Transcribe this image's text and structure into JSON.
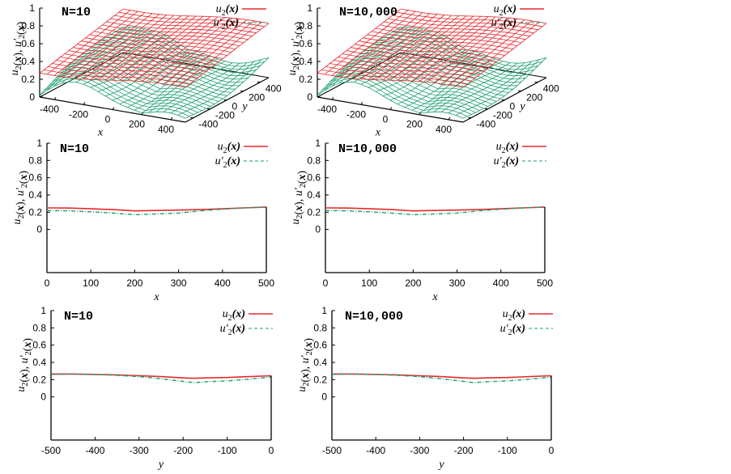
{
  "chart_data": [
    {
      "id": "p3d-n10",
      "type": "surface",
      "annotation": "N=10",
      "xlabel": "x",
      "ylabel": "y",
      "zlabel": "u2(x), u'2(x)",
      "xticks": [
        "-400",
        "-200",
        "0",
        "200",
        "400"
      ],
      "yticks": [
        "-400",
        "-200",
        "0",
        "200",
        "400"
      ],
      "zticks": [
        "0",
        "0.2",
        "0.4",
        "0.6",
        "0.8",
        "1"
      ],
      "xlim": [
        -500,
        500
      ],
      "ylim": [
        -500,
        500
      ],
      "zlim": [
        0,
        1
      ],
      "legend": [
        {
          "label": "u2(x)",
          "style": "solid",
          "color": "#e8282d"
        },
        {
          "label": "u'2(x)",
          "style": "dashed",
          "color": "#1a9e6e"
        }
      ],
      "legend_position": "top-right",
      "series": [
        {
          "name": "u2(x)",
          "description": "nearly flat tilted surface, z from ~0.27 at (-500,-500) to ~0.5 at far corner"
        },
        {
          "name": "u'2(x)",
          "description": "wavy surface, z from ~0.0 at (-500,-500) rising to ~0.35-0.4 with central dip"
        }
      ]
    },
    {
      "id": "p3d-n10000",
      "type": "surface",
      "annotation": "N=10,000",
      "xlabel": "x",
      "ylabel": "y",
      "zlabel": "u2(x), u'2(x)",
      "xticks": [
        "-400",
        "-200",
        "0",
        "200",
        "400"
      ],
      "yticks": [
        "-400",
        "-200",
        "0",
        "200",
        "400"
      ],
      "zticks": [
        "0",
        "0.2",
        "0.4",
        "0.6",
        "0.8",
        "1"
      ],
      "xlim": [
        -500,
        500
      ],
      "ylim": [
        -500,
        500
      ],
      "zlim": [
        0,
        1
      ],
      "legend": [
        {
          "label": "u2(x)",
          "style": "solid",
          "color": "#e8282d"
        },
        {
          "label": "u'2(x)",
          "style": "dashed",
          "color": "#1a9e6e"
        }
      ],
      "legend_position": "top-right",
      "series": [
        {
          "name": "u2(x)",
          "description": "nearly flat tilted surface"
        },
        {
          "name": "u'2(x)",
          "description": "wavy surface below"
        }
      ]
    },
    {
      "id": "px-n10",
      "type": "line",
      "annotation": "N=10",
      "xlabel": "x",
      "ylabel": "u2(x), u'2(x)",
      "xlim": [
        0,
        500
      ],
      "ylim": [
        -0.5,
        1
      ],
      "xticks": [
        "0",
        "100",
        "200",
        "300",
        "400",
        "500"
      ],
      "yticks": [
        "0",
        "0.2",
        "0.4",
        "0.6",
        "0.8",
        "1"
      ],
      "legend_position": "top-right",
      "x": [
        0,
        50,
        100,
        150,
        200,
        250,
        300,
        350,
        400,
        450,
        500
      ],
      "series": [
        {
          "name": "u2(x)",
          "style": "solid",
          "color": "#e8282d",
          "values": [
            0.25,
            0.248,
            0.24,
            0.23,
            0.215,
            0.22,
            0.225,
            0.23,
            0.24,
            0.25,
            0.26
          ]
        },
        {
          "name": "u'2(x)",
          "style": "dashed",
          "color": "#1a9e6e",
          "values": [
            0.22,
            0.215,
            0.205,
            0.19,
            0.17,
            0.18,
            0.19,
            0.215,
            0.235,
            0.25,
            0.26
          ]
        }
      ]
    },
    {
      "id": "px-n10000",
      "type": "line",
      "annotation": "N=10,000",
      "xlabel": "x",
      "ylabel": "u2(x), u'2(x)",
      "xlim": [
        0,
        500
      ],
      "ylim": [
        -0.5,
        1
      ],
      "xticks": [
        "0",
        "100",
        "200",
        "300",
        "400",
        "500"
      ],
      "yticks": [
        "0",
        "0.2",
        "0.4",
        "0.6",
        "0.8",
        "1"
      ],
      "legend_position": "top-right",
      "x": [
        0,
        50,
        100,
        150,
        200,
        250,
        300,
        350,
        400,
        450,
        500
      ],
      "series": [
        {
          "name": "u2(x)",
          "style": "solid",
          "color": "#e8282d",
          "values": [
            0.25,
            0.248,
            0.24,
            0.23,
            0.215,
            0.22,
            0.225,
            0.23,
            0.24,
            0.25,
            0.26
          ]
        },
        {
          "name": "u'2(x)",
          "style": "dashed",
          "color": "#1a9e6e",
          "values": [
            0.22,
            0.215,
            0.205,
            0.19,
            0.17,
            0.18,
            0.19,
            0.215,
            0.235,
            0.25,
            0.26
          ]
        }
      ]
    },
    {
      "id": "py-n10",
      "type": "line",
      "annotation": "N=10",
      "xlabel": "y",
      "ylabel": "u2(x), u'2(x)",
      "xlim": [
        -500,
        0
      ],
      "ylim": [
        -0.5,
        1
      ],
      "xticks": [
        "-500",
        "-400",
        "-300",
        "-200",
        "-100",
        "0"
      ],
      "yticks": [
        "0",
        "0.2",
        "0.4",
        "0.6",
        "0.8",
        "1"
      ],
      "legend_position": "top-right",
      "x": [
        -500,
        -450,
        -400,
        -350,
        -300,
        -250,
        -200,
        -175,
        -150,
        -100,
        -50,
        0
      ],
      "series": [
        {
          "name": "u2(x)",
          "style": "solid",
          "color": "#e8282d",
          "values": [
            0.265,
            0.265,
            0.26,
            0.255,
            0.245,
            0.235,
            0.22,
            0.215,
            0.22,
            0.225,
            0.235,
            0.245
          ]
        },
        {
          "name": "u'2(x)",
          "style": "dashed",
          "color": "#1a9e6e",
          "values": [
            0.26,
            0.265,
            0.26,
            0.25,
            0.235,
            0.21,
            0.18,
            0.165,
            0.175,
            0.185,
            0.205,
            0.23
          ]
        }
      ]
    },
    {
      "id": "py-n10000",
      "type": "line",
      "annotation": "N=10,000",
      "xlabel": "y",
      "ylabel": "u2(x), u'2(x)",
      "xlim": [
        -500,
        0
      ],
      "ylim": [
        -0.5,
        1
      ],
      "xticks": [
        "-500",
        "-400",
        "-300",
        "-200",
        "-100",
        "0"
      ],
      "yticks": [
        "0",
        "0.2",
        "0.4",
        "0.6",
        "0.8",
        "1"
      ],
      "legend_position": "top-right",
      "x": [
        -500,
        -450,
        -400,
        -350,
        -300,
        -250,
        -200,
        -175,
        -150,
        -100,
        -50,
        0
      ],
      "series": [
        {
          "name": "u2(x)",
          "style": "solid",
          "color": "#e8282d",
          "values": [
            0.265,
            0.265,
            0.26,
            0.255,
            0.245,
            0.235,
            0.22,
            0.215,
            0.22,
            0.225,
            0.235,
            0.245
          ]
        },
        {
          "name": "u'2(x)",
          "style": "dashed",
          "color": "#1a9e6e",
          "values": [
            0.26,
            0.265,
            0.26,
            0.25,
            0.235,
            0.21,
            0.18,
            0.165,
            0.175,
            0.185,
            0.205,
            0.23
          ]
        }
      ]
    }
  ],
  "labels": {
    "ylab_main": "u",
    "ylab_sub": "2",
    "ylab_rest": "(x), u'",
    "ylab_sub2": "2",
    "ylab_end": "(x)",
    "leg1_main": "u",
    "leg1_sub": "2",
    "leg1_end": "(x)",
    "leg2_main": "u'",
    "leg2_sub": "2",
    "leg2_end": "(x)"
  }
}
